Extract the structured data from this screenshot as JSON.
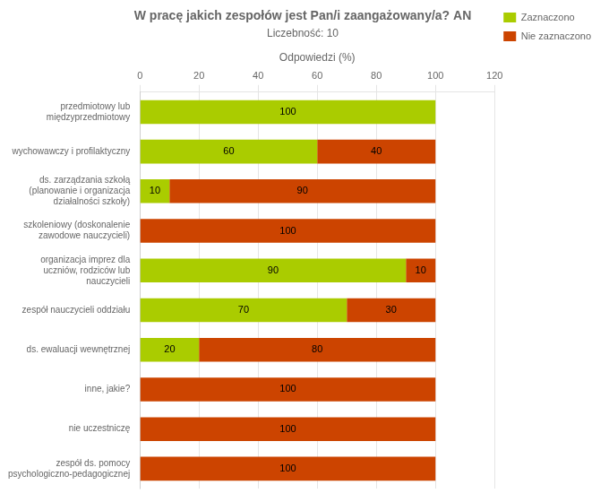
{
  "chart_data": {
    "type": "bar",
    "orientation": "horizontal",
    "stacked": true,
    "title": "W pracę jakich zespołów jest Pan/i zaangażowany/a? AN",
    "subtitle": "Liczebność: 10",
    "xlabel": "Odpowiedzi (%)",
    "xlim": [
      0,
      120
    ],
    "xticks": [
      0,
      20,
      40,
      60,
      80,
      100,
      120
    ],
    "grid": true,
    "legend": "right",
    "data_labels": true,
    "categories": [
      "przedmiotowy lub\nmiędzyprzedmiotowy",
      "wychowawczy i profilaktyczny",
      "ds. zarządzania szkołą\n(planowanie i organizacja\ndziałalności szkoły)",
      "szkoleniowy (doskonalenie\nzawodowe nauczycieli)",
      "organizacja imprez dla\nuczniów, rodziców lub\nnauczycieli",
      "zespół nauczycieli oddziału",
      "ds. ewaluacji wewnętrznej",
      "inne, jakie?",
      "nie uczestniczę",
      "zespół ds. pomocy\npsychologiczno-pedagogicznej"
    ],
    "series": [
      {
        "name": "Zaznaczono",
        "color": "#AACC00",
        "values": [
          100,
          60,
          10,
          0,
          90,
          70,
          20,
          0,
          0,
          0
        ]
      },
      {
        "name": "Nie zaznaczono",
        "color": "#CC4400",
        "values": [
          0,
          40,
          90,
          100,
          10,
          30,
          80,
          100,
          100,
          100
        ]
      }
    ]
  }
}
